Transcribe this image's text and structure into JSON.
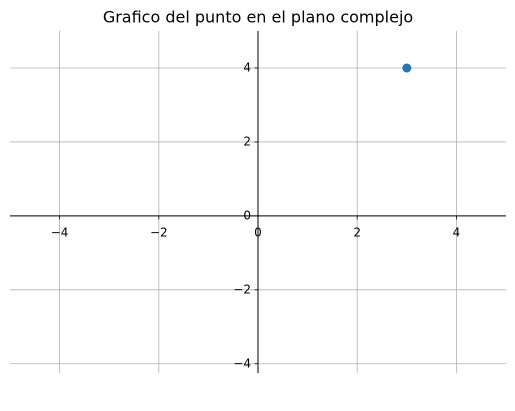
{
  "chart_data": {
    "type": "scatter",
    "title": "Grafico del punto en el plano complejo",
    "series": [
      {
        "color": "#1f77b4",
        "x": [
          3
        ],
        "values": [
          4
        ]
      }
    ],
    "xlim": [
      -5,
      5
    ],
    "ylim": [
      -4.25,
      5
    ],
    "xticks": [
      {
        "value": -4,
        "label": "−4"
      },
      {
        "value": -2,
        "label": "−2"
      },
      0,
      2,
      4
    ],
    "yticks": [
      {
        "value": -4,
        "label": "−4"
      },
      {
        "value": -2,
        "label": "−2"
      },
      0,
      2,
      4
    ],
    "grid": true
  }
}
